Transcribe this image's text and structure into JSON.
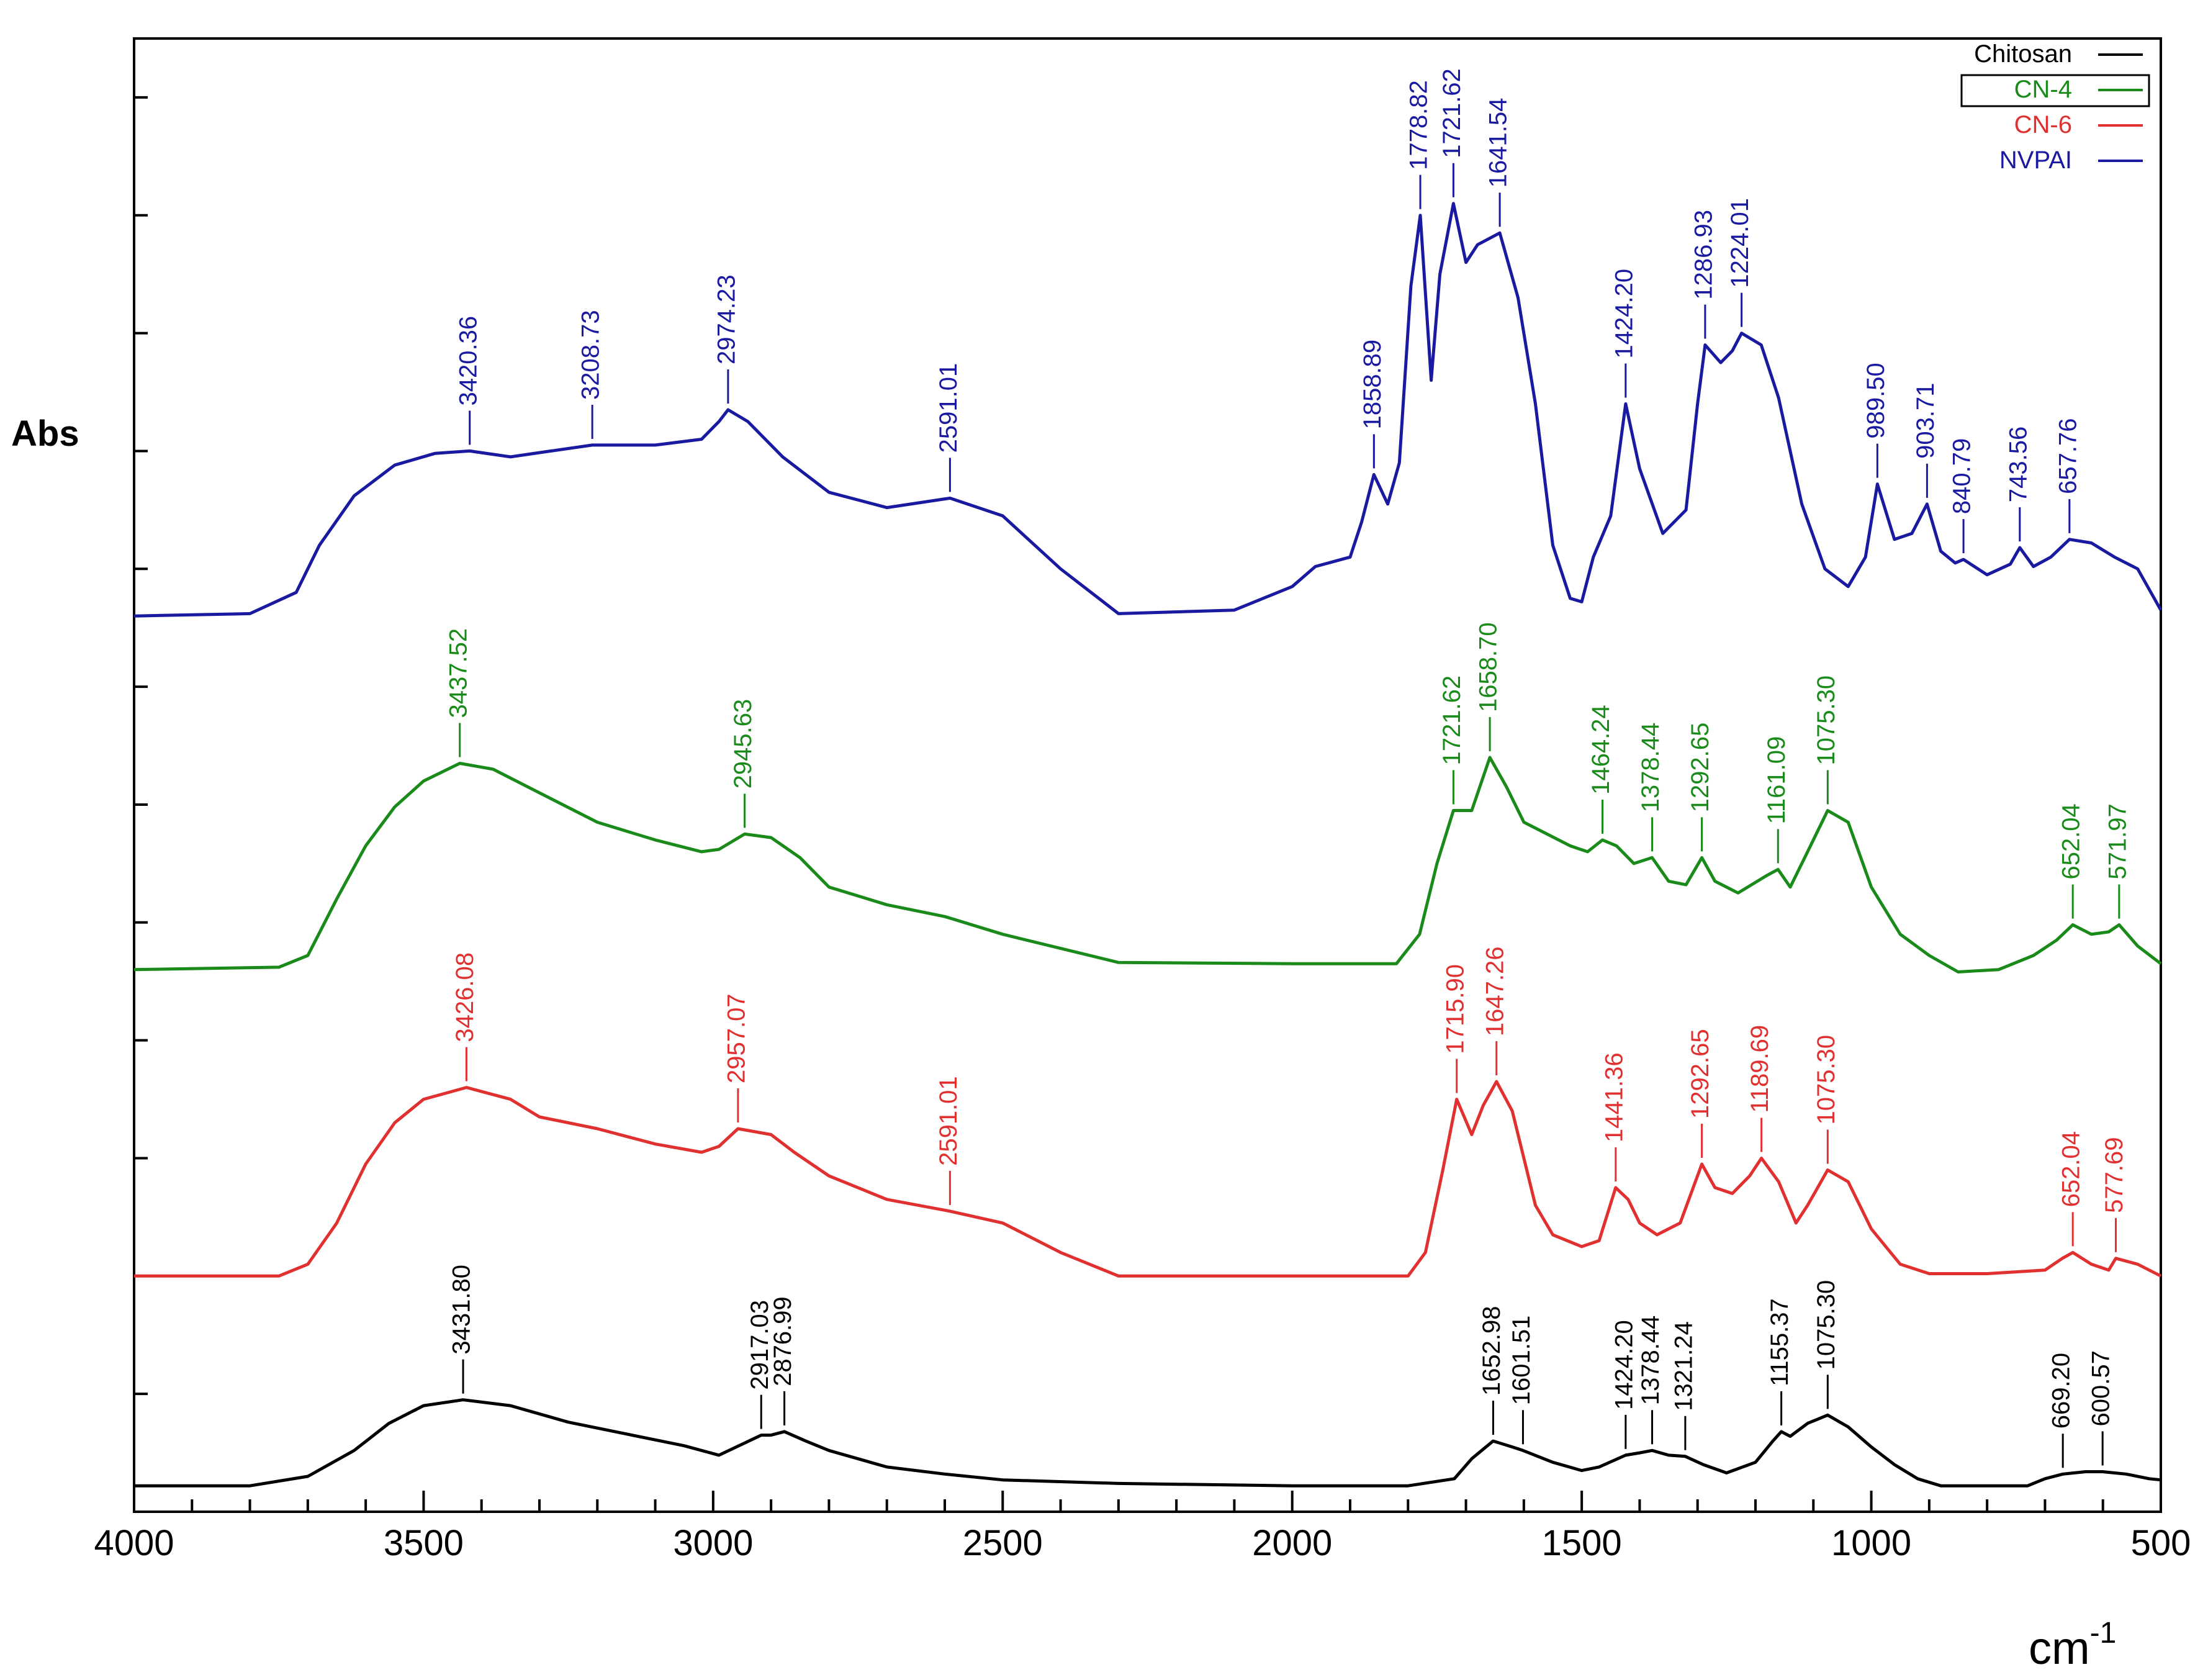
{
  "chart_data": {
    "type": "line",
    "title": "",
    "xlabel": "cm",
    "xlabel_superscript": "-1",
    "ylabel": "Abs",
    "xlim": [
      4000,
      500
    ],
    "ylim": [
      0,
      12.5
    ],
    "x_ticks": [
      "4000",
      "3500",
      "3000",
      "2500",
      "2000",
      "1500",
      "1000",
      "500"
    ],
    "legend_position": "top-right",
    "legend_highlight": "CN-4",
    "series": [
      {
        "name": "Chitosan",
        "color": "#000000",
        "points": [
          [
            4000,
            0.22
          ],
          [
            3800,
            0.22
          ],
          [
            3700,
            0.3
          ],
          [
            3620,
            0.52
          ],
          [
            3560,
            0.75
          ],
          [
            3500,
            0.9
          ],
          [
            3431.8,
            0.95
          ],
          [
            3350,
            0.9
          ],
          [
            3250,
            0.76
          ],
          [
            3150,
            0.66
          ],
          [
            3050,
            0.56
          ],
          [
            2990,
            0.48
          ],
          [
            2960,
            0.55
          ],
          [
            2917.03,
            0.65
          ],
          [
            2900,
            0.65
          ],
          [
            2876.99,
            0.68
          ],
          [
            2840,
            0.6
          ],
          [
            2800,
            0.52
          ],
          [
            2700,
            0.38
          ],
          [
            2600,
            0.32
          ],
          [
            2500,
            0.27
          ],
          [
            2300,
            0.24
          ],
          [
            2000,
            0.22
          ],
          [
            1800,
            0.22
          ],
          [
            1720,
            0.28
          ],
          [
            1690,
            0.45
          ],
          [
            1652.98,
            0.6
          ],
          [
            1620,
            0.55
          ],
          [
            1601.51,
            0.52
          ],
          [
            1550,
            0.42
          ],
          [
            1500,
            0.35
          ],
          [
            1470,
            0.38
          ],
          [
            1424.2,
            0.48
          ],
          [
            1400,
            0.5
          ],
          [
            1378.44,
            0.52
          ],
          [
            1350,
            0.48
          ],
          [
            1321.24,
            0.47
          ],
          [
            1290,
            0.4
          ],
          [
            1250,
            0.33
          ],
          [
            1200,
            0.42
          ],
          [
            1170,
            0.6
          ],
          [
            1155.37,
            0.68
          ],
          [
            1140,
            0.64
          ],
          [
            1110,
            0.75
          ],
          [
            1075.3,
            0.82
          ],
          [
            1040,
            0.72
          ],
          [
            1000,
            0.55
          ],
          [
            960,
            0.4
          ],
          [
            920,
            0.28
          ],
          [
            880,
            0.22
          ],
          [
            800,
            0.22
          ],
          [
            730,
            0.22
          ],
          [
            700,
            0.28
          ],
          [
            669.2,
            0.32
          ],
          [
            630,
            0.34
          ],
          [
            600.57,
            0.34
          ],
          [
            560,
            0.32
          ],
          [
            520,
            0.28
          ],
          [
            500,
            0.27
          ]
        ],
        "peak_labels": [
          "3431.80",
          "2917.03",
          "2876.99",
          "1652.98",
          "1601.51",
          "1424.20",
          "1378.44",
          "1321.24",
          "1155.37",
          "1075.30",
          "669.20",
          "600.57"
        ],
        "peak_x": [
          3431.8,
          2917.03,
          2876.99,
          1652.98,
          1601.51,
          1424.2,
          1378.44,
          1321.24,
          1155.37,
          1075.3,
          669.2,
          600.57
        ]
      },
      {
        "name": "CN-6",
        "color": "#e03030",
        "points": [
          [
            4000,
            2.0
          ],
          [
            3750,
            2.0
          ],
          [
            3700,
            2.1
          ],
          [
            3650,
            2.45
          ],
          [
            3600,
            2.95
          ],
          [
            3550,
            3.3
          ],
          [
            3500,
            3.5
          ],
          [
            3426.08,
            3.6
          ],
          [
            3350,
            3.5
          ],
          [
            3300,
            3.35
          ],
          [
            3200,
            3.25
          ],
          [
            3100,
            3.12
          ],
          [
            3020,
            3.05
          ],
          [
            2990,
            3.1
          ],
          [
            2957.07,
            3.25
          ],
          [
            2900,
            3.2
          ],
          [
            2860,
            3.05
          ],
          [
            2800,
            2.85
          ],
          [
            2700,
            2.65
          ],
          [
            2591.01,
            2.55
          ],
          [
            2500,
            2.45
          ],
          [
            2400,
            2.2
          ],
          [
            2300,
            2.0
          ],
          [
            2000,
            2.0
          ],
          [
            1800,
            2.0
          ],
          [
            1770,
            2.2
          ],
          [
            1740,
            2.9
          ],
          [
            1715.9,
            3.5
          ],
          [
            1690,
            3.2
          ],
          [
            1670,
            3.45
          ],
          [
            1647.26,
            3.65
          ],
          [
            1620,
            3.4
          ],
          [
            1580,
            2.6
          ],
          [
            1550,
            2.35
          ],
          [
            1500,
            2.25
          ],
          [
            1470,
            2.3
          ],
          [
            1441.36,
            2.75
          ],
          [
            1420,
            2.65
          ],
          [
            1400,
            2.45
          ],
          [
            1370,
            2.35
          ],
          [
            1330,
            2.45
          ],
          [
            1292.65,
            2.95
          ],
          [
            1270,
            2.75
          ],
          [
            1240,
            2.7
          ],
          [
            1210,
            2.85
          ],
          [
            1189.69,
            3.0
          ],
          [
            1160,
            2.8
          ],
          [
            1130,
            2.45
          ],
          [
            1110,
            2.6
          ],
          [
            1075.3,
            2.9
          ],
          [
            1040,
            2.8
          ],
          [
            1000,
            2.4
          ],
          [
            950,
            2.1
          ],
          [
            900,
            2.02
          ],
          [
            800,
            2.02
          ],
          [
            700,
            2.05
          ],
          [
            670,
            2.15
          ],
          [
            652.04,
            2.2
          ],
          [
            620,
            2.1
          ],
          [
            590,
            2.05
          ],
          [
            577.69,
            2.15
          ],
          [
            540,
            2.1
          ],
          [
            500,
            2.0
          ]
        ],
        "peak_labels": [
          "3426.08",
          "2957.07",
          "2591.01",
          "1715.90",
          "1647.26",
          "1441.36",
          "1292.65",
          "1189.69",
          "1075.30",
          "652.04",
          "577.69"
        ],
        "peak_x": [
          3426.08,
          2957.07,
          2591.01,
          1715.9,
          1647.26,
          1441.36,
          1292.65,
          1189.69,
          1075.3,
          652.04,
          577.69
        ]
      },
      {
        "name": "CN-4",
        "color": "#1a8a1a",
        "points": [
          [
            4000,
            4.6
          ],
          [
            3750,
            4.62
          ],
          [
            3700,
            4.72
          ],
          [
            3650,
            5.2
          ],
          [
            3600,
            5.65
          ],
          [
            3550,
            5.98
          ],
          [
            3500,
            6.2
          ],
          [
            3437.52,
            6.35
          ],
          [
            3380,
            6.3
          ],
          [
            3300,
            6.1
          ],
          [
            3200,
            5.85
          ],
          [
            3100,
            5.7
          ],
          [
            3020,
            5.6
          ],
          [
            2990,
            5.62
          ],
          [
            2945.63,
            5.75
          ],
          [
            2900,
            5.72
          ],
          [
            2850,
            5.55
          ],
          [
            2800,
            5.3
          ],
          [
            2700,
            5.15
          ],
          [
            2600,
            5.05
          ],
          [
            2500,
            4.9
          ],
          [
            2400,
            4.78
          ],
          [
            2300,
            4.66
          ],
          [
            2000,
            4.65
          ],
          [
            1820,
            4.65
          ],
          [
            1780,
            4.9
          ],
          [
            1750,
            5.5
          ],
          [
            1721.62,
            5.95
          ],
          [
            1690,
            5.95
          ],
          [
            1658.7,
            6.4
          ],
          [
            1630,
            6.15
          ],
          [
            1600,
            5.85
          ],
          [
            1560,
            5.75
          ],
          [
            1520,
            5.65
          ],
          [
            1490,
            5.6
          ],
          [
            1464.24,
            5.7
          ],
          [
            1440,
            5.65
          ],
          [
            1410,
            5.5
          ],
          [
            1378.44,
            5.55
          ],
          [
            1350,
            5.35
          ],
          [
            1320,
            5.32
          ],
          [
            1292.65,
            5.55
          ],
          [
            1270,
            5.35
          ],
          [
            1230,
            5.25
          ],
          [
            1180,
            5.4
          ],
          [
            1161.09,
            5.45
          ],
          [
            1140,
            5.3
          ],
          [
            1110,
            5.6
          ],
          [
            1075.3,
            5.95
          ],
          [
            1040,
            5.85
          ],
          [
            1000,
            5.3
          ],
          [
            950,
            4.9
          ],
          [
            900,
            4.72
          ],
          [
            850,
            4.58
          ],
          [
            780,
            4.6
          ],
          [
            720,
            4.72
          ],
          [
            680,
            4.85
          ],
          [
            652.04,
            4.98
          ],
          [
            620,
            4.9
          ],
          [
            590,
            4.92
          ],
          [
            571.97,
            4.98
          ],
          [
            540,
            4.8
          ],
          [
            500,
            4.65
          ]
        ],
        "peak_labels": [
          "3437.52",
          "2945.63",
          "1721.62",
          "1658.70",
          "1464.24",
          "1378.44",
          "1292.65",
          "1161.09",
          "1075.30",
          "652.04",
          "571.97"
        ],
        "peak_x": [
          3437.52,
          2945.63,
          1721.62,
          1658.7,
          1464.24,
          1378.44,
          1292.65,
          1161.09,
          1075.3,
          652.04,
          571.97
        ]
      },
      {
        "name": "NVPAI",
        "color": "#1a1aa0",
        "points": [
          [
            4000,
            7.6
          ],
          [
            3800,
            7.62
          ],
          [
            3720,
            7.8
          ],
          [
            3680,
            8.2
          ],
          [
            3620,
            8.62
          ],
          [
            3550,
            8.88
          ],
          [
            3480,
            8.98
          ],
          [
            3420.36,
            9.0
          ],
          [
            3350,
            8.95
          ],
          [
            3280,
            9.0
          ],
          [
            3208.73,
            9.05
          ],
          [
            3100,
            9.05
          ],
          [
            3020,
            9.1
          ],
          [
            2990,
            9.25
          ],
          [
            2974.23,
            9.35
          ],
          [
            2940,
            9.25
          ],
          [
            2880,
            8.95
          ],
          [
            2800,
            8.65
          ],
          [
            2700,
            8.52
          ],
          [
            2591.01,
            8.6
          ],
          [
            2500,
            8.45
          ],
          [
            2400,
            8.0
          ],
          [
            2300,
            7.62
          ],
          [
            2100,
            7.65
          ],
          [
            2000,
            7.85
          ],
          [
            1960,
            8.02
          ],
          [
            1900,
            8.1
          ],
          [
            1880,
            8.4
          ],
          [
            1858.89,
            8.8
          ],
          [
            1835,
            8.55
          ],
          [
            1815,
            8.9
          ],
          [
            1795,
            10.4
          ],
          [
            1778.82,
            11.0
          ],
          [
            1760,
            9.6
          ],
          [
            1745,
            10.5
          ],
          [
            1721.62,
            11.1
          ],
          [
            1700,
            10.6
          ],
          [
            1680,
            10.75
          ],
          [
            1641.54,
            10.85
          ],
          [
            1610,
            10.3
          ],
          [
            1580,
            9.4
          ],
          [
            1550,
            8.2
          ],
          [
            1520,
            7.75
          ],
          [
            1500,
            7.72
          ],
          [
            1480,
            8.1
          ],
          [
            1450,
            8.45
          ],
          [
            1424.2,
            9.4
          ],
          [
            1400,
            8.85
          ],
          [
            1360,
            8.3
          ],
          [
            1320,
            8.5
          ],
          [
            1300,
            9.4
          ],
          [
            1286.93,
            9.9
          ],
          [
            1260,
            9.75
          ],
          [
            1240,
            9.85
          ],
          [
            1224.01,
            10.0
          ],
          [
            1190,
            9.9
          ],
          [
            1160,
            9.45
          ],
          [
            1120,
            8.55
          ],
          [
            1080,
            8.0
          ],
          [
            1040,
            7.85
          ],
          [
            1010,
            8.1
          ],
          [
            989.5,
            8.72
          ],
          [
            960,
            8.25
          ],
          [
            930,
            8.3
          ],
          [
            903.71,
            8.55
          ],
          [
            880,
            8.15
          ],
          [
            855,
            8.05
          ],
          [
            840.79,
            8.08
          ],
          [
            800,
            7.95
          ],
          [
            760,
            8.04
          ],
          [
            743.56,
            8.18
          ],
          [
            720,
            8.02
          ],
          [
            690,
            8.1
          ],
          [
            657.76,
            8.25
          ],
          [
            620,
            8.22
          ],
          [
            580,
            8.1
          ],
          [
            540,
            8.0
          ],
          [
            500,
            7.65
          ]
        ],
        "peak_labels": [
          "3420.36",
          "3208.73",
          "2974.23",
          "2591.01",
          "1858.89",
          "1778.82",
          "1721.62",
          "1641.54",
          "1424.20",
          "1286.93",
          "1224.01",
          "989.50",
          "903.71",
          "840.79",
          "743.56",
          "657.76"
        ],
        "peak_x": [
          3420.36,
          3208.73,
          2974.23,
          2591.01,
          1858.89,
          1778.82,
          1721.62,
          1641.54,
          1424.2,
          1286.93,
          1224.01,
          989.5,
          903.71,
          840.79,
          743.56,
          657.76
        ]
      }
    ]
  }
}
